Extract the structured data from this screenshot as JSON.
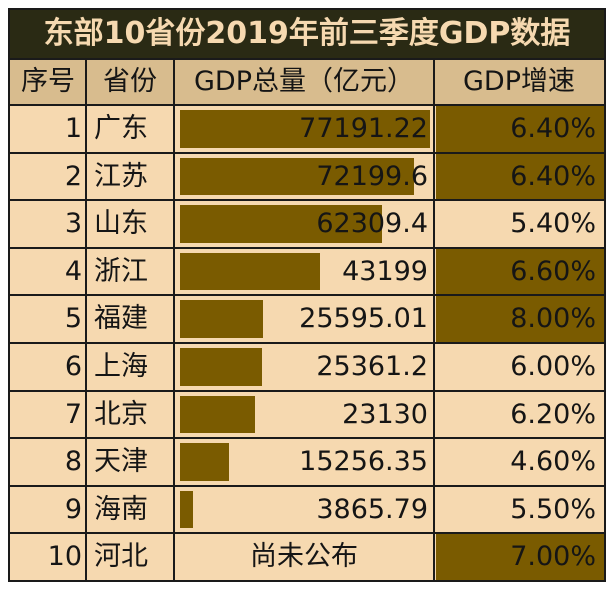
{
  "title": "东部10省份2019年前三季度GDP数据",
  "headers": [
    "序号",
    "省份",
    "GDP总量（亿元）",
    "GDP增速"
  ],
  "accent_color": "#7a5b00",
  "background_color": "#f6d9b0",
  "chart_data": {
    "type": "table",
    "title": "东部10省份2019年前三季度GDP数据",
    "columns": [
      "序号",
      "省份",
      "GDP总量（亿元）",
      "GDP增速"
    ],
    "rows": [
      {
        "rank": "1",
        "province": "广东",
        "gdp": 77191.22,
        "gdp_text": "77191.22",
        "growth": "6.40%",
        "highlight": true
      },
      {
        "rank": "2",
        "province": "江苏",
        "gdp": 72199.6,
        "gdp_text": "72199.6",
        "growth": "6.40%",
        "highlight": true
      },
      {
        "rank": "3",
        "province": "山东",
        "gdp": 62309.4,
        "gdp_text": "62309.4",
        "growth": "5.40%",
        "highlight": false
      },
      {
        "rank": "4",
        "province": "浙江",
        "gdp": 43199,
        "gdp_text": "43199",
        "growth": "6.60%",
        "highlight": true
      },
      {
        "rank": "5",
        "province": "福建",
        "gdp": 25595.01,
        "gdp_text": "25595.01",
        "growth": "8.00%",
        "highlight": true
      },
      {
        "rank": "6",
        "province": "上海",
        "gdp": 25361.2,
        "gdp_text": "25361.2",
        "growth": "6.00%",
        "highlight": false
      },
      {
        "rank": "7",
        "province": "北京",
        "gdp": 23130,
        "gdp_text": "23130",
        "growth": "6.20%",
        "highlight": false
      },
      {
        "rank": "8",
        "province": "天津",
        "gdp": 15256.35,
        "gdp_text": "15256.35",
        "growth": "4.60%",
        "highlight": false
      },
      {
        "rank": "9",
        "province": "海南",
        "gdp": 3865.79,
        "gdp_text": "3865.79",
        "growth": "5.50%",
        "highlight": false
      },
      {
        "rank": "10",
        "province": "河北",
        "gdp": null,
        "gdp_text": "尚未公布",
        "growth": "7.00%",
        "highlight": true
      }
    ]
  }
}
